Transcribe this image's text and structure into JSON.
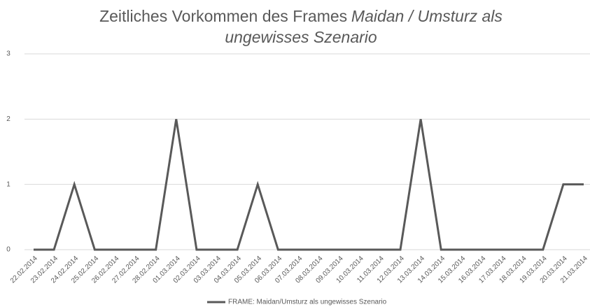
{
  "chart_data": {
    "type": "line",
    "title": [
      "Zeitliches Vorkommen des Frames",
      "Maidan / Umsturz als ungewisses Szenario"
    ],
    "categories": [
      "22.02.2014",
      "23.02.2014",
      "24.02.2014",
      "25.02.2014",
      "26.02.2014",
      "27.02.2014",
      "28.02.2014",
      "01.03.2014",
      "02.03.2014",
      "03.03.2014",
      "04.03.2014",
      "05.03.2014",
      "06.03.2014",
      "07.03.2014",
      "08.03.2014",
      "09.03.2014",
      "10.03.2014",
      "11.03.2014",
      "12.03.2014",
      "13.03.2014",
      "14.03.2014",
      "15.03.2014",
      "16.03.2014",
      "17.03.2014",
      "18.03.2014",
      "19.03.2014",
      "20.03.2014",
      "21.03.2014"
    ],
    "series": [
      {
        "name": "FRAME: Maidan/Umsturz als ungewisses Szenario",
        "color": "#595959",
        "values": [
          0,
          0,
          1,
          0,
          0,
          0,
          0,
          2,
          0,
          0,
          0,
          1,
          0,
          0,
          0,
          0,
          0,
          0,
          0,
          2,
          0,
          0,
          0,
          0,
          0,
          0,
          1,
          1
        ]
      }
    ],
    "ylim": [
      0,
      3
    ],
    "yticks": [
      0,
      1,
      2,
      3
    ],
    "grid": true,
    "legend": "bottom"
  }
}
